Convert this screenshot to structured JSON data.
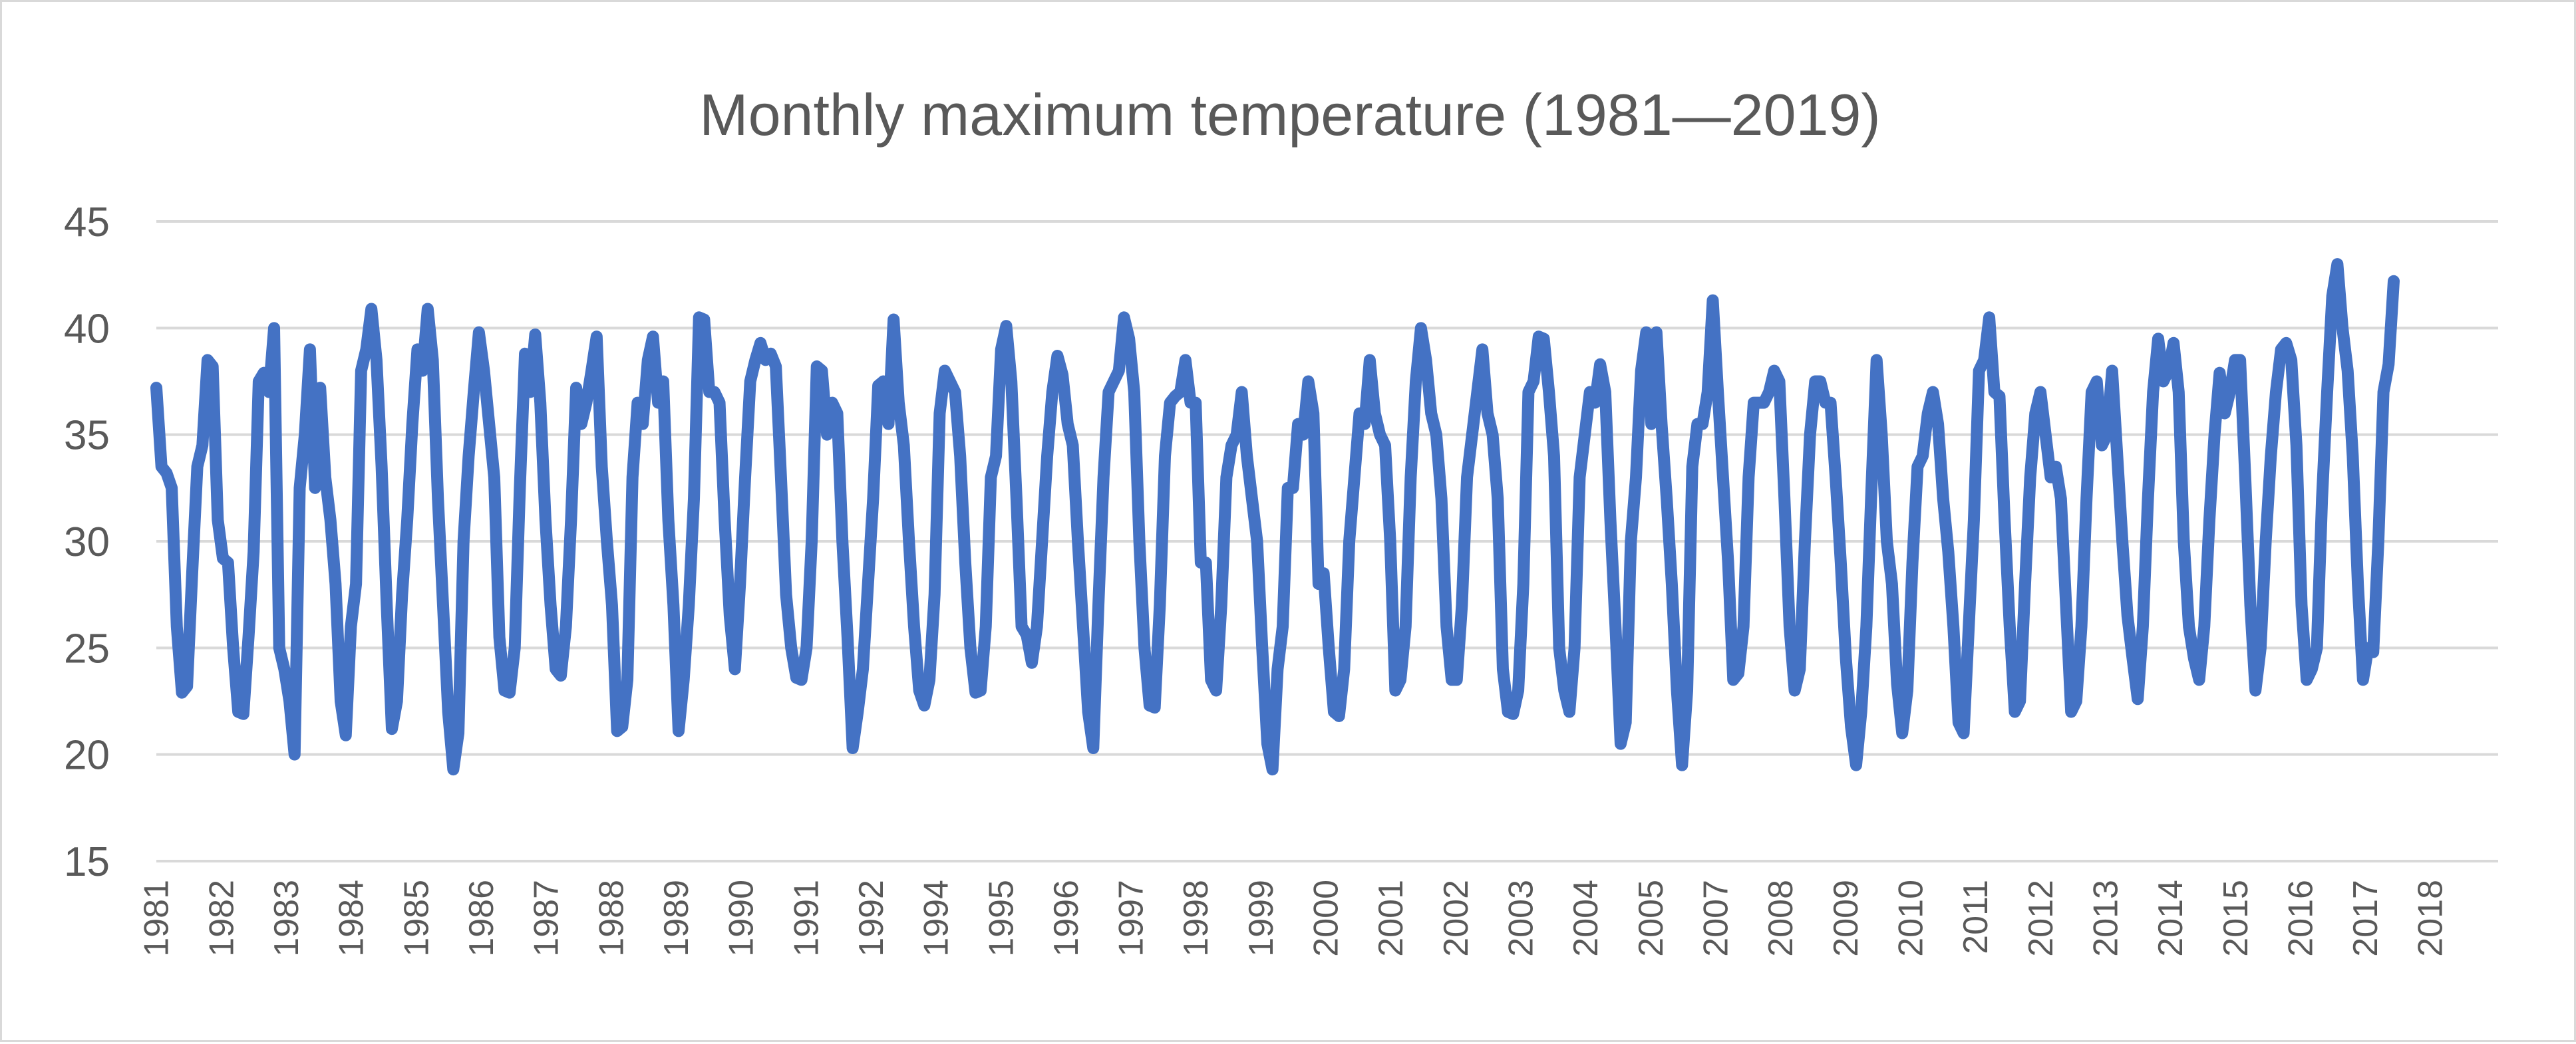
{
  "chart_data": {
    "type": "line",
    "title": "Monthly maximum temperature (1981—2019)",
    "xlabel": "",
    "ylabel": "",
    "ylim": [
      15,
      45
    ],
    "yticks": [
      "15",
      "20",
      "25",
      "30",
      "35",
      "40",
      "45"
    ],
    "grid": true,
    "legend": "none",
    "x_tick_labels": [
      "1981",
      "1982",
      "1983",
      "1984",
      "1985",
      "1986",
      "1987",
      "1988",
      "1989",
      "1990",
      "1991",
      "1992",
      "1994",
      "1995",
      "1996",
      "1997",
      "1998",
      "1999",
      "2000",
      "2001",
      "2002",
      "2003",
      "2004",
      "2005",
      "2007",
      "2008",
      "2009",
      "2010",
      "2011",
      "2012",
      "2013",
      "2014",
      "2015",
      "2016",
      "2017",
      "2018"
    ],
    "series": [
      {
        "name": "Monthly maximum temperature",
        "color": "#4472c4",
        "values": [
          37.2,
          33.5,
          33.2,
          32.5,
          26,
          22.9,
          23.2,
          28.5,
          33.5,
          34.5,
          38.5,
          38.2,
          31,
          29.2,
          29,
          25,
          22,
          21.9,
          25.5,
          29.5,
          37.5,
          37.9,
          37,
          40,
          25,
          24,
          22.5,
          20,
          32.5,
          35,
          39,
          32.5,
          37.2,
          33,
          31,
          28,
          22.5,
          20.9,
          26,
          28,
          38,
          39,
          40.9,
          38.5,
          33.5,
          27,
          21.2,
          22.5,
          27.5,
          31,
          35.5,
          39,
          38,
          40.9,
          38.5,
          32,
          27,
          22,
          19.3,
          21,
          30,
          34,
          37,
          39.8,
          38,
          35.5,
          33,
          25.5,
          23,
          22.9,
          25,
          32.5,
          38.8,
          37,
          39.7,
          36.5,
          31,
          27,
          24,
          23.7,
          26,
          31,
          37.2,
          35.5,
          36.5,
          38,
          39.6,
          33.5,
          30,
          27,
          21.1,
          21.3,
          23.5,
          33,
          36.5,
          35.5,
          38.5,
          39.6,
          36.5,
          37.5,
          31,
          27,
          21.1,
          23.5,
          27,
          32,
          40.5,
          40.4,
          37,
          37,
          36.5,
          31,
          26.5,
          24,
          28,
          33,
          37.5,
          38.5,
          39.3,
          38.5,
          38.8,
          38.2,
          33,
          27.5,
          25,
          23.6,
          23.5,
          25,
          30,
          38.2,
          38,
          35,
          36.5,
          36,
          30,
          25.5,
          20.3,
          22,
          24,
          28,
          32,
          37.3,
          37.5,
          35.5,
          40.4,
          36.5,
          34.5,
          30,
          26,
          23,
          22.3,
          23.5,
          27.5,
          36,
          38,
          37.5,
          37,
          34,
          29,
          25,
          22.9,
          23,
          26,
          33,
          34,
          39,
          40.1,
          37.5,
          32,
          26,
          25.6,
          24.3,
          26,
          30,
          34,
          37,
          38.7,
          37.8,
          35.5,
          34.5,
          30,
          26,
          22,
          20.3,
          27,
          33,
          37,
          37.5,
          38,
          40.5,
          39.5,
          37,
          30,
          25,
          22.3,
          22.2,
          27,
          34,
          36.5,
          36.8,
          37,
          38.5,
          36.5,
          36.5,
          29,
          29,
          23.5,
          23,
          27,
          33,
          34.5,
          35,
          37,
          34,
          32,
          30,
          25,
          20.5,
          19.3,
          24,
          26,
          32.5,
          32.5,
          35.5,
          35,
          37.5,
          36,
          28,
          28.5,
          25,
          22,
          21.8,
          24,
          30,
          33,
          36,
          35.5,
          38.5,
          36,
          35,
          34.5,
          30,
          23,
          23.5,
          26,
          33,
          37.5,
          40,
          38.5,
          36,
          35,
          32,
          26,
          23.5,
          23.5,
          27,
          33,
          35,
          37,
          39,
          36,
          35,
          32,
          24,
          22,
          21.9,
          23,
          28,
          37,
          37.5,
          39.6,
          39.5,
          37,
          34,
          25,
          23,
          22,
          25,
          33,
          35,
          37,
          36.5,
          38.3,
          37,
          31,
          26,
          20.5,
          21.5,
          30,
          33,
          38,
          39.8,
          35.5,
          39.8,
          35.5,
          32,
          28,
          23,
          19.5,
          23,
          33.5,
          35.5,
          35.5,
          37,
          41.3,
          37,
          33,
          29,
          23.5,
          23.8,
          26,
          33,
          36.5,
          36.5,
          36.5,
          37,
          38,
          37.5,
          32,
          26,
          23,
          24,
          30,
          35,
          37.5,
          37.5,
          36.5,
          36.5,
          33,
          29,
          24.5,
          21.3,
          19.5,
          22,
          26,
          32.5,
          38.5,
          35,
          30,
          28,
          23.3,
          21,
          23,
          29,
          33.5,
          34,
          36,
          37,
          35.5,
          32,
          29.5,
          26,
          21.5,
          21,
          26,
          31,
          38,
          38.5,
          40.5,
          37,
          36.8,
          31,
          26,
          22,
          22.5,
          28,
          33,
          36,
          37,
          35,
          33,
          33.5,
          32,
          27,
          22,
          22.5,
          26,
          32,
          37,
          37.5,
          34.5,
          35,
          38,
          34,
          30,
          26.5,
          24.5,
          22.6,
          26,
          32,
          37,
          39.5,
          37.5,
          38,
          39.3,
          37,
          30,
          26,
          24.5,
          23.5,
          26,
          31,
          35,
          37.9,
          36,
          37,
          38.5,
          38.5,
          33,
          27,
          23,
          25,
          30,
          34,
          37,
          39,
          39.3,
          38.5,
          34.5,
          27,
          23.5,
          24,
          25,
          32,
          37,
          41.5,
          43,
          40,
          38,
          34,
          28,
          23.5,
          25,
          24.8,
          30,
          37,
          38.3,
          42.2
        ]
      }
    ]
  }
}
